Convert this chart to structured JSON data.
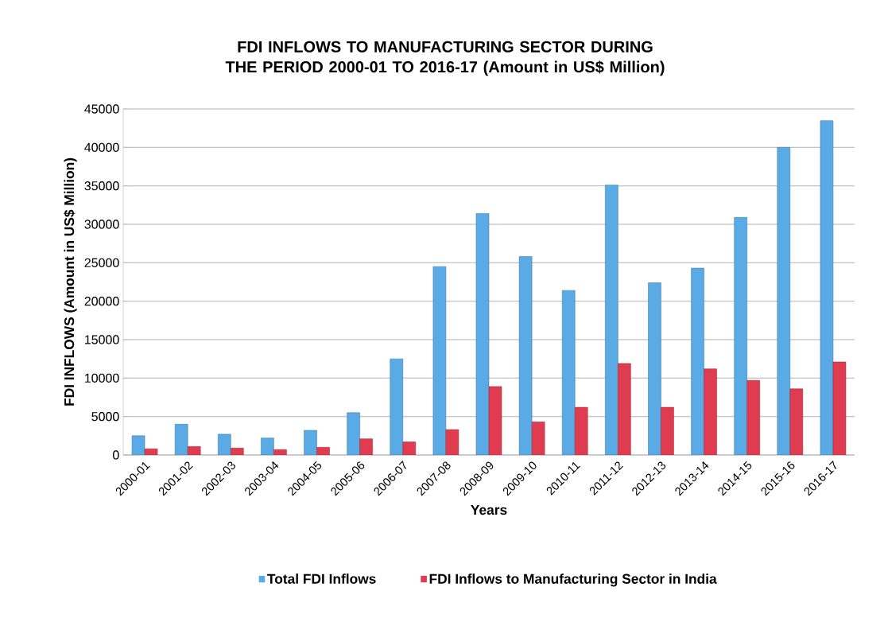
{
  "chart_data": {
    "type": "bar",
    "title": "FDI INFLOWS TO MANUFACTURING SECTOR DURING THE PERIOD 2000-01 TO 2016-17 (Amount in US$ Million)",
    "xlabel": "Years",
    "ylabel": "FDI INFLOWS (Amount in US$ Million)",
    "categories": [
      "2000-01",
      "2001-02",
      "2002-03",
      "2003-04",
      "2004-05",
      "2005-06",
      "2006-07",
      "2007-08",
      "2008-09",
      "2009-10",
      "2010-11",
      "2011-12",
      "2012-13",
      "2013-14",
      "2014-15",
      "2015-16",
      "2016-17"
    ],
    "series": [
      {
        "name": "Total FDI Inflows",
        "color": "#5aaae6",
        "values": [
          2500,
          4000,
          2700,
          2200,
          3200,
          5500,
          12500,
          24500,
          31400,
          25800,
          21400,
          35100,
          22400,
          24300,
          30900,
          40000,
          43500
        ]
      },
      {
        "name": "FDI Inflows to Manufacturing Sector in India",
        "color": "#e03c50",
        "values": [
          800,
          1100,
          900,
          700,
          1000,
          2100,
          1700,
          3300,
          8900,
          4300,
          6200,
          11900,
          6200,
          11200,
          9700,
          8600,
          12100
        ]
      }
    ],
    "ylim": [
      0,
      45000
    ],
    "yticks": [
      0,
      5000,
      10000,
      15000,
      20000,
      25000,
      30000,
      35000,
      40000,
      45000
    ],
    "grid": "y",
    "legend": "bottom"
  }
}
